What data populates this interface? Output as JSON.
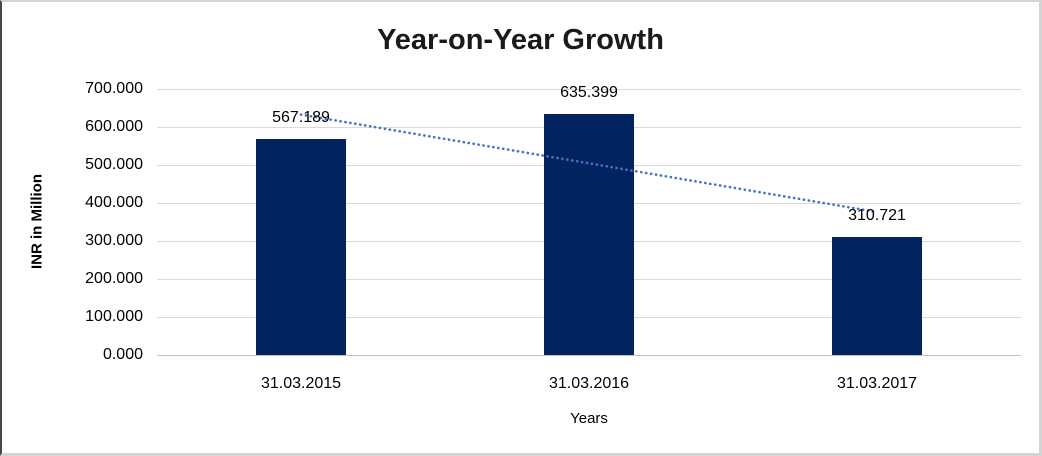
{
  "chart_data": {
    "type": "bar",
    "title": "Year-on-Year Growth",
    "xlabel": "Years",
    "ylabel": "INR in Million",
    "categories": [
      "31.03.2015",
      "31.03.2016",
      "31.03.2017"
    ],
    "values": [
      567.189,
      635.399,
      310.721
    ],
    "data_labels": [
      "567.189",
      "635.399",
      "310.721"
    ],
    "ylim": [
      0,
      700
    ],
    "ytick_step": 100,
    "ytick_labels": [
      "700.000",
      "600.000",
      "500.000",
      "400.000",
      "300.000",
      "200.000",
      "100.000",
      "0.000"
    ],
    "grid": true,
    "legend": "none",
    "trendline": {
      "type": "linear",
      "style": "dotted"
    },
    "colors": {
      "bar": "#02235F",
      "gridline": "#D9D9D9",
      "axis_line": "#BFBFBF",
      "trendline": "#4472C4",
      "text": "#000000",
      "title": "#1A1A1A"
    }
  }
}
